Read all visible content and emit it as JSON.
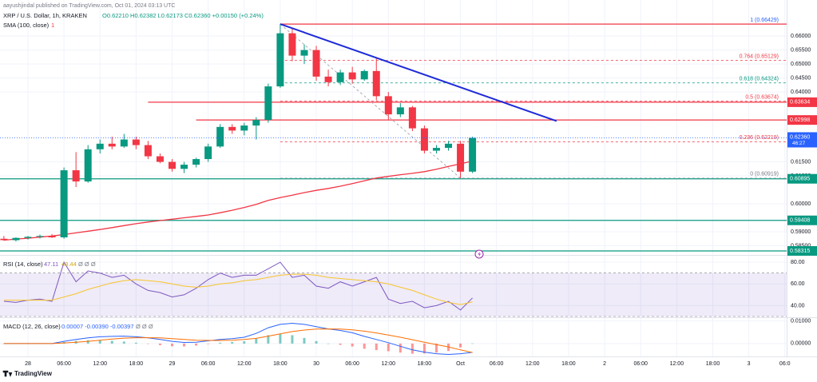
{
  "chart_data": {
    "type": "candlestick",
    "publisher": "aayushjindal published on TradingView.com, Oct 01, 2024 03:13 UTC",
    "symbol": "XRP / U.S. Dollar, 1h, KRAKEN",
    "ohlc_text": "O0.62210 H0.62382 L0.62173 C0.62360 +0.00150 (+0.24%)",
    "sma_title": "SMA (100, close)",
    "sma_extra": "1",
    "up_color": "#089981",
    "down_color": "#f23645",
    "x": [
      -4,
      -2,
      0,
      2,
      4,
      6,
      8,
      10,
      12,
      14,
      16,
      18,
      20,
      22,
      24,
      26,
      28,
      30,
      32,
      34,
      36,
      38,
      40,
      42,
      44,
      46,
      48,
      50,
      52,
      54,
      56,
      58,
      60,
      62,
      64,
      66,
      68,
      70,
      72,
      74
    ],
    "open": [
      0.5875,
      0.587,
      0.5878,
      0.5882,
      0.5885,
      0.588,
      0.612,
      0.608,
      0.6195,
      0.6215,
      0.6205,
      0.623,
      0.621,
      0.617,
      0.615,
      0.6125,
      0.614,
      0.616,
      0.6205,
      0.6275,
      0.6262,
      0.628,
      0.63,
      0.642,
      0.661,
      0.653,
      0.655,
      0.6455,
      0.6435,
      0.647,
      0.6445,
      0.6475,
      0.6385,
      0.632,
      0.6345,
      0.627,
      0.619,
      0.62,
      0.6215,
      0.6115
    ],
    "high": [
      0.5885,
      0.588,
      0.5885,
      0.589,
      0.5892,
      0.613,
      0.6185,
      0.621,
      0.623,
      0.624,
      0.625,
      0.624,
      0.6225,
      0.618,
      0.616,
      0.615,
      0.6165,
      0.6215,
      0.6285,
      0.6285,
      0.629,
      0.631,
      0.643,
      0.66429,
      0.663,
      0.657,
      0.6565,
      0.648,
      0.648,
      0.649,
      0.648,
      0.652,
      0.64,
      0.636,
      0.635,
      0.628,
      0.621,
      0.6225,
      0.6225,
      0.624
    ],
    "low": [
      0.5868,
      0.5865,
      0.5872,
      0.5876,
      0.5878,
      0.5875,
      0.606,
      0.6075,
      0.618,
      0.6195,
      0.62,
      0.6195,
      0.616,
      0.6145,
      0.6115,
      0.611,
      0.613,
      0.615,
      0.62,
      0.625,
      0.6245,
      0.623,
      0.629,
      0.6415,
      0.651,
      0.65,
      0.644,
      0.642,
      0.6425,
      0.643,
      0.644,
      0.637,
      0.63,
      0.631,
      0.626,
      0.618,
      0.618,
      0.619,
      0.60919,
      0.611
    ],
    "close": [
      0.587,
      0.5878,
      0.5882,
      0.5885,
      0.588,
      0.612,
      0.608,
      0.6195,
      0.6215,
      0.6205,
      0.623,
      0.621,
      0.617,
      0.615,
      0.6125,
      0.614,
      0.616,
      0.6205,
      0.6275,
      0.6262,
      0.628,
      0.63,
      0.642,
      0.661,
      0.653,
      0.655,
      0.6455,
      0.6435,
      0.647,
      0.6445,
      0.6475,
      0.6385,
      0.632,
      0.6345,
      0.627,
      0.619,
      0.62,
      0.6215,
      0.6115,
      0.6236
    ],
    "sma": {
      "color": "#f23645",
      "values": [
        0.587,
        0.5874,
        0.5877,
        0.5881,
        0.5885,
        0.589,
        0.5896,
        0.5902,
        0.5908,
        0.5915,
        0.5922,
        0.5929,
        0.5935,
        0.594,
        0.5945,
        0.595,
        0.5955,
        0.596,
        0.5968,
        0.5977,
        0.5987,
        0.5998,
        0.6012,
        0.6022,
        0.6031,
        0.604,
        0.6048,
        0.6055,
        0.6063,
        0.6072,
        0.6082,
        0.6092,
        0.6098,
        0.6104,
        0.6109,
        0.6115,
        0.6124,
        0.6134,
        0.6143,
        0.6153
      ]
    },
    "xlim": [
      -4.65,
      126.3
    ],
    "ylim": [
      0.582,
      0.6729
    ],
    "xticks": [
      {
        "value": 0,
        "label": "28"
      },
      {
        "value": 6,
        "label": "06:00"
      },
      {
        "value": 12,
        "label": "12:00"
      },
      {
        "value": 18,
        "label": "18:00"
      },
      {
        "value": 24,
        "label": "29"
      },
      {
        "value": 30,
        "label": "06:00"
      },
      {
        "value": 36,
        "label": "12:00"
      },
      {
        "value": 42,
        "label": "18:00"
      },
      {
        "value": 48,
        "label": "30"
      },
      {
        "value": 54,
        "label": "06:00"
      },
      {
        "value": 60,
        "label": "12:00"
      },
      {
        "value": 66,
        "label": "18:00"
      },
      {
        "value": 72,
        "label": "Oct"
      },
      {
        "value": 78,
        "label": "06:00"
      },
      {
        "value": 84,
        "label": "12:00"
      },
      {
        "value": 90,
        "label": "18:00"
      },
      {
        "value": 96,
        "label": "2"
      },
      {
        "value": 102,
        "label": "06:00"
      },
      {
        "value": 108,
        "label": "12:00"
      },
      {
        "value": 114,
        "label": "18:00"
      },
      {
        "value": 120,
        "label": "3"
      },
      {
        "value": 126,
        "label": "06:0"
      }
    ],
    "yticks": [
      {
        "value": 0.66,
        "label": "0.66000"
      },
      {
        "value": 0.655,
        "label": "0.65500"
      },
      {
        "value": 0.65,
        "label": "0.65000"
      },
      {
        "value": 0.645,
        "label": "0.64500"
      },
      {
        "value": 0.64,
        "label": "0.64000"
      },
      {
        "value": 0.615,
        "label": "0.61500"
      },
      {
        "value": 0.61,
        "label": "0.61000"
      },
      {
        "value": 0.6,
        "label": "0.60000"
      },
      {
        "value": 0.59,
        "label": "0.59000"
      },
      {
        "value": 0.585,
        "label": "0.58500"
      }
    ],
    "grid": true,
    "levels": [
      {
        "value": 0.63634,
        "color": "#f23645",
        "from": 20
      },
      {
        "value": 0.62998,
        "color": "#f23645",
        "from": 28
      },
      {
        "value": 0.60895,
        "color": "#089981",
        "from": -4.65
      },
      {
        "value": 0.59408,
        "color": "#089981",
        "from": -4.65
      },
      {
        "value": 0.58315,
        "color": "#089981",
        "from": -4.65
      }
    ],
    "fib": {
      "x": [
        42,
        72
      ],
      "levels": [
        {
          "label": "1 (0.66429)",
          "value": 0.66429,
          "color": "#f23645",
          "text_color": "#2962ff",
          "line": "solid"
        },
        {
          "label": "0.764 (0.65129)",
          "value": 0.65129,
          "color": "#f23645",
          "text_color": "#f23645",
          "line": "dashed"
        },
        {
          "label": "0.618 (0.64324)",
          "value": 0.64324,
          "color": "#089981",
          "text_color": "#089981",
          "line": "dashed"
        },
        {
          "label": "0.5 (0.63674)",
          "value": 0.63674,
          "color": "#f23645",
          "text_color": "#f23645",
          "line": "dashed"
        },
        {
          "label": "0.236 (0.62219)",
          "value": 0.62219,
          "color": "#f23645",
          "text_color": "#f23645",
          "line": "dashed"
        },
        {
          "label": "0 (0.60919)",
          "value": 0.60919,
          "color": "#9598a1",
          "text_color": "#787b86",
          "line": "dashed"
        }
      ]
    },
    "trendline": {
      "color": "#1e2bd8",
      "x": [
        42,
        88
      ],
      "y": [
        0.6643,
        0.6296
      ]
    },
    "last_price": {
      "value": 0.6236,
      "label": "0.62360",
      "countdown": "46:27",
      "color": "#2962ff"
    },
    "rsi": {
      "title": "RSI (14, close)",
      "extra": "Ø Ø Ø",
      "ylim": [
        30,
        86
      ],
      "yticks": [
        {
          "value": 80,
          "label": "80.00"
        },
        {
          "value": 60,
          "label": "60.00"
        },
        {
          "value": 40,
          "label": "40.00"
        }
      ],
      "band": [
        30,
        70
      ],
      "band_color": "#7e57c2",
      "series": [
        {
          "color": "#7e57c2",
          "values": [
            44,
            43,
            45,
            46,
            44,
            80,
            62,
            72,
            70,
            66,
            68,
            60,
            54,
            52,
            48,
            50,
            56,
            64,
            70,
            66,
            68,
            68,
            74,
            80,
            66,
            68,
            58,
            56,
            62,
            58,
            62,
            66,
            46,
            42,
            44,
            38,
            40,
            44,
            36,
            47.11
          ]
        },
        {
          "color": "#f7c52b",
          "values": [
            45,
            45,
            45,
            45,
            45,
            48,
            51,
            55,
            58,
            61,
            63,
            64,
            63,
            62,
            60,
            58,
            57,
            58,
            60,
            61,
            63,
            64,
            66,
            68,
            69,
            69,
            68,
            66,
            65,
            64,
            63,
            62,
            60,
            57,
            54,
            50,
            46,
            43,
            41,
            43.44
          ]
        }
      ]
    },
    "macd": {
      "title": "MACD (12, 26, close)",
      "readout": "0.00007 -0.00390 -0.00397",
      "extra": "Ø Ø Ø",
      "ylim": [
        -0.0057,
        0.0113
      ],
      "yticks": [
        {
          "value": 0.01,
          "label": "0.01000"
        },
        {
          "value": 0,
          "label": "0.00000"
        }
      ],
      "histogram": {
        "up_color": "#26a69a",
        "down_color": "#ff5252",
        "values": [
          0,
          0,
          0,
          0,
          0,
          0.0007,
          0.0012,
          0.0015,
          0.0015,
          0.0012,
          0.0009,
          0.0004,
          -0.0001,
          -0.0007,
          -0.0012,
          -0.0013,
          -0.0009,
          -0.0002,
          0.0004,
          0.0007,
          0.001,
          0.0022,
          0.0037,
          0.0042,
          0.0037,
          0.0025,
          0.0011,
          0,
          -0.0006,
          -0.0013,
          -0.0023,
          -0.0029,
          -0.0034,
          -0.004,
          -0.0045,
          -0.0044,
          -0.004,
          -0.0033,
          -0.0017,
          7e-05
        ]
      },
      "series": [
        {
          "color": "#2962ff",
          "values": [
            0,
            0,
            0,
            0,
            0,
            0.001,
            0.0018,
            0.0025,
            0.003,
            0.0032,
            0.0033,
            0.003,
            0.0025,
            0.0018,
            0.001,
            0.0005,
            0.0006,
            0.0012,
            0.0018,
            0.0022,
            0.0028,
            0.0045,
            0.007,
            0.0085,
            0.009,
            0.0085,
            0.0075,
            0.0065,
            0.0058,
            0.0048,
            0.0032,
            0.0018,
            0.0004,
            -0.0012,
            -0.0028,
            -0.0038,
            -0.0045,
            -0.0048,
            -0.0045,
            -0.0039
          ]
        },
        {
          "color": "#ff6d00",
          "values": [
            0,
            0,
            0,
            0,
            0,
            0.0003,
            0.0006,
            0.001,
            0.0015,
            0.002,
            0.0024,
            0.0026,
            0.0026,
            0.0025,
            0.0022,
            0.0018,
            0.0015,
            0.0014,
            0.0014,
            0.0015,
            0.0018,
            0.0023,
            0.0033,
            0.0043,
            0.0053,
            0.006,
            0.0064,
            0.0065,
            0.0064,
            0.0061,
            0.0055,
            0.0047,
            0.0038,
            0.0028,
            0.0017,
            0.0006,
            -0.0005,
            -0.0015,
            -0.0028,
            -0.00397
          ]
        }
      ]
    },
    "footer": "TradingView"
  }
}
